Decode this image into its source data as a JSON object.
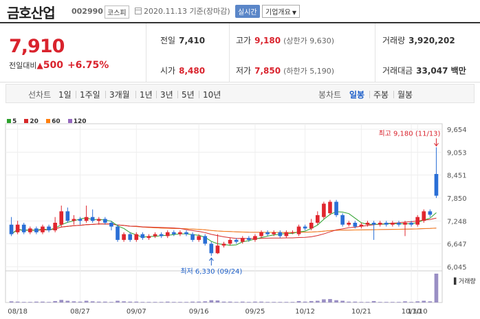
{
  "header": {
    "title": "금호산업",
    "code": "002990",
    "market": "코스피",
    "date_text": "2020.11.13 기준(장마감)",
    "realtime_label": "실시간",
    "company_label": "기업개요",
    "company_caret": "▼"
  },
  "summary": {
    "price": "7,910",
    "change_label": "전일대비",
    "change_arrow": "▲",
    "change_amount": "500",
    "change_percent": "+6.75%",
    "prev_close_label": "전일",
    "prev_close": "7,410",
    "high_label": "고가",
    "high": "9,180",
    "upper_limit": "(상한가 9,630)",
    "volume_label": "거래량",
    "volume": "3,920,202",
    "open_label": "시가",
    "open": "8,480",
    "low_label": "저가",
    "low": "7,850",
    "lower_limit": "(하한가 5,190)",
    "amount_label": "거래대금",
    "amount": "33,047 백만"
  },
  "tabs": {
    "line_chart_label": "선차트",
    "periods": [
      "1일",
      "1주일",
      "3개월",
      "1년",
      "3년",
      "5년",
      "10년"
    ],
    "candle_label": "봉차트",
    "candles": [
      "일봉",
      "주봉",
      "월봉"
    ],
    "active_candle": "일봉"
  },
  "legend": [
    {
      "label": "5",
      "color": "#2ca02c"
    },
    {
      "label": "20",
      "color": "#d62728"
    },
    {
      "label": "60",
      "color": "#ff7f0e"
    },
    {
      "label": "120",
      "color": "#9467bd"
    }
  ],
  "chart_data": {
    "type": "candlestick",
    "y_ticks": [
      "9,654",
      "9,053",
      "8,451",
      "7,850",
      "7,248",
      "6,647",
      "6,045"
    ],
    "x_ticks": [
      "08/18",
      "08/27",
      "09/07",
      "09/16",
      "09/25",
      "10/12",
      "10/21",
      "10/30",
      "11/10"
    ],
    "ylim": [
      6045,
      9654
    ],
    "high_annotation": "최고 9,180 (11/13)",
    "low_annotation": "최저 6,330 (09/24)",
    "volume_label": "거래량",
    "up_color": "#e0262e",
    "down_color": "#2a6fd6",
    "candles": [
      {
        "o": 7150,
        "c": 6900,
        "h": 7350,
        "l": 6850
      },
      {
        "o": 6950,
        "c": 7150,
        "h": 7250,
        "l": 6900
      },
      {
        "o": 7150,
        "c": 6950,
        "h": 7200,
        "l": 6900
      },
      {
        "o": 6950,
        "c": 7050,
        "h": 7100,
        "l": 6900
      },
      {
        "o": 7050,
        "c": 6950,
        "h": 7100,
        "l": 6900
      },
      {
        "o": 6950,
        "c": 7100,
        "h": 7150,
        "l": 6900
      },
      {
        "o": 7100,
        "c": 7000,
        "h": 7150,
        "l": 6950
      },
      {
        "o": 7000,
        "c": 7200,
        "h": 7350,
        "l": 6950
      },
      {
        "o": 7150,
        "c": 7500,
        "h": 7650,
        "l": 7100
      },
      {
        "o": 7500,
        "c": 7250,
        "h": 7600,
        "l": 7200
      },
      {
        "o": 7250,
        "c": 7300,
        "h": 7400,
        "l": 7150
      },
      {
        "o": 7300,
        "c": 7250,
        "h": 7350,
        "l": 7150
      },
      {
        "o": 7250,
        "c": 7350,
        "h": 7650,
        "l": 7200
      },
      {
        "o": 7350,
        "c": 7250,
        "h": 7550,
        "l": 7200
      },
      {
        "o": 7250,
        "c": 7300,
        "h": 7350,
        "l": 7150
      },
      {
        "o": 7300,
        "c": 7200,
        "h": 7350,
        "l": 7150
      },
      {
        "o": 7200,
        "c": 7100,
        "h": 7250,
        "l": 7000
      },
      {
        "o": 7100,
        "c": 6750,
        "h": 7150,
        "l": 6700
      },
      {
        "o": 6750,
        "c": 6900,
        "h": 6950,
        "l": 6700
      },
      {
        "o": 6900,
        "c": 6750,
        "h": 6950,
        "l": 6700
      },
      {
        "o": 6750,
        "c": 6900,
        "h": 6950,
        "l": 6700
      },
      {
        "o": 6900,
        "c": 6800,
        "h": 6950,
        "l": 6750
      },
      {
        "o": 6800,
        "c": 6850,
        "h": 6900,
        "l": 6750
      },
      {
        "o": 6850,
        "c": 6900,
        "h": 6950,
        "l": 6800
      },
      {
        "o": 6900,
        "c": 6850,
        "h": 6950,
        "l": 6800
      },
      {
        "o": 6850,
        "c": 6950,
        "h": 7000,
        "l": 6800
      },
      {
        "o": 6950,
        "c": 6900,
        "h": 7000,
        "l": 6850
      },
      {
        "o": 6900,
        "c": 6950,
        "h": 7000,
        "l": 6850
      },
      {
        "o": 6950,
        "c": 6900,
        "h": 7000,
        "l": 6850
      },
      {
        "o": 6900,
        "c": 6750,
        "h": 6950,
        "l": 6700
      },
      {
        "o": 6750,
        "c": 6850,
        "h": 6900,
        "l": 6700
      },
      {
        "o": 6850,
        "c": 6650,
        "h": 6900,
        "l": 6600
      },
      {
        "o": 6650,
        "c": 6400,
        "h": 6700,
        "l": 6330
      },
      {
        "o": 6400,
        "c": 6600,
        "h": 6900,
        "l": 6380
      },
      {
        "o": 6600,
        "c": 6650,
        "h": 6700,
        "l": 6550
      },
      {
        "o": 6650,
        "c": 6750,
        "h": 6800,
        "l": 6600
      },
      {
        "o": 6750,
        "c": 6700,
        "h": 6800,
        "l": 6650
      },
      {
        "o": 6700,
        "c": 6800,
        "h": 6850,
        "l": 6650
      },
      {
        "o": 6800,
        "c": 6750,
        "h": 6850,
        "l": 6700
      },
      {
        "o": 6750,
        "c": 6850,
        "h": 6900,
        "l": 6700
      },
      {
        "o": 6850,
        "c": 6950,
        "h": 7000,
        "l": 6800
      },
      {
        "o": 6950,
        "c": 6900,
        "h": 7000,
        "l": 6850
      },
      {
        "o": 6900,
        "c": 6950,
        "h": 7000,
        "l": 6850
      },
      {
        "o": 6950,
        "c": 6850,
        "h": 7000,
        "l": 6800
      },
      {
        "o": 6850,
        "c": 6950,
        "h": 7000,
        "l": 6800
      },
      {
        "o": 6950,
        "c": 6950,
        "h": 7000,
        "l": 6900
      },
      {
        "o": 6900,
        "c": 7100,
        "h": 7150,
        "l": 6850
      },
      {
        "o": 7100,
        "c": 7050,
        "h": 7150,
        "l": 7000
      },
      {
        "o": 7050,
        "c": 7200,
        "h": 7300,
        "l": 7000
      },
      {
        "o": 7200,
        "c": 7400,
        "h": 7500,
        "l": 7150
      },
      {
        "o": 7350,
        "c": 7700,
        "h": 7750,
        "l": 7300
      },
      {
        "o": 7450,
        "c": 7750,
        "h": 7800,
        "l": 7400
      },
      {
        "o": 7750,
        "c": 7400,
        "h": 7800,
        "l": 7350
      },
      {
        "o": 7400,
        "c": 7150,
        "h": 7450,
        "l": 7100
      },
      {
        "o": 7150,
        "c": 7200,
        "h": 7250,
        "l": 7100
      },
      {
        "o": 7200,
        "c": 7100,
        "h": 7250,
        "l": 7050
      },
      {
        "o": 7100,
        "c": 7150,
        "h": 7200,
        "l": 7050
      },
      {
        "o": 7150,
        "c": 7200,
        "h": 7250,
        "l": 7100
      },
      {
        "o": 7200,
        "c": 7150,
        "h": 7250,
        "l": 6750
      },
      {
        "o": 7150,
        "c": 7200,
        "h": 7250,
        "l": 7100
      },
      {
        "o": 7200,
        "c": 7150,
        "h": 7250,
        "l": 7100
      },
      {
        "o": 7150,
        "c": 7200,
        "h": 7250,
        "l": 7100
      },
      {
        "o": 7200,
        "c": 7150,
        "h": 7250,
        "l": 7100
      },
      {
        "o": 7150,
        "c": 7200,
        "h": 7250,
        "l": 6850
      },
      {
        "o": 7200,
        "c": 7150,
        "h": 7250,
        "l": 7100
      },
      {
        "o": 7150,
        "c": 7350,
        "h": 7400,
        "l": 7100
      },
      {
        "o": 7250,
        "c": 7500,
        "h": 7550,
        "l": 7200
      },
      {
        "o": 7500,
        "c": 7410,
        "h": 7550,
        "l": 7350
      },
      {
        "o": 8480,
        "c": 7910,
        "h": 9180,
        "l": 7850
      }
    ],
    "volumes": [
      4,
      3,
      2,
      2,
      3,
      3,
      2,
      5,
      9,
      6,
      4,
      3,
      6,
      4,
      3,
      3,
      2,
      6,
      4,
      3,
      3,
      2,
      2,
      2,
      2,
      3,
      2,
      2,
      2,
      3,
      3,
      4,
      8,
      7,
      3,
      3,
      2,
      3,
      2,
      3,
      3,
      2,
      2,
      2,
      2,
      2,
      5,
      3,
      5,
      6,
      11,
      12,
      8,
      6,
      3,
      3,
      2,
      2,
      5,
      2,
      2,
      2,
      2,
      4,
      2,
      4,
      6,
      4,
      100
    ]
  }
}
